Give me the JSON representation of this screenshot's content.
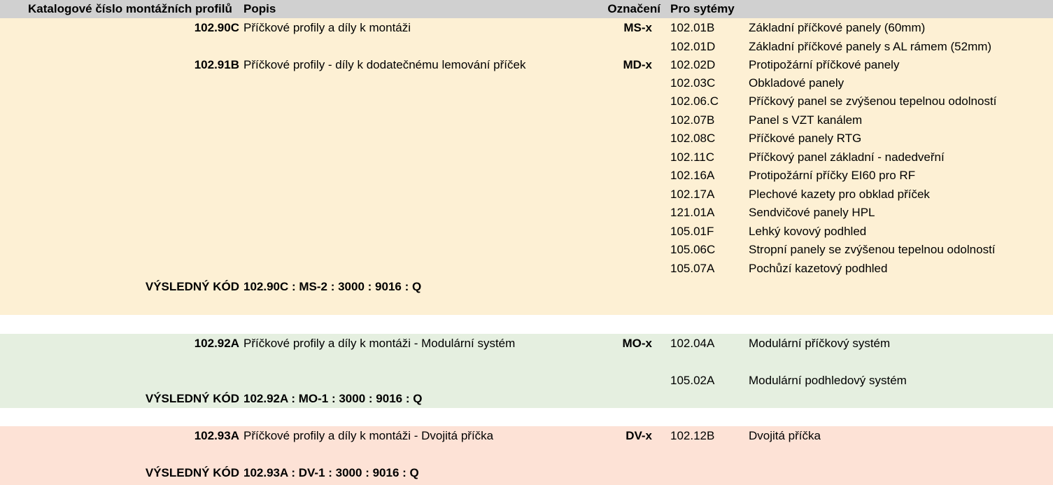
{
  "header": {
    "col_catalog": "Katalogové číslo montážních profilů",
    "col_desc": "Popis",
    "col_mark": "Označení",
    "col_systems": "Pro sytémy"
  },
  "groups": [
    {
      "color": "#fdf0d4",
      "items": [
        {
          "code": "102.90C",
          "desc": "Příčkové profily a díly k montáži",
          "mark": "MS-x"
        },
        {
          "code": "102.91B",
          "desc": "Příčkové profily - díly k dodatečnému lemování příček",
          "mark": "MD-x"
        }
      ],
      "systems": [
        {
          "code": "102.01B",
          "desc": "Základní příčkové panely (60mm)"
        },
        {
          "code": "102.01D",
          "desc": "Základní příčkové panely s AL rámem (52mm)"
        },
        {
          "code": "102.02D",
          "desc": "Protipožární příčkové panely"
        },
        {
          "code": "102.03C",
          "desc": "Obkladové panely"
        },
        {
          "code": "102.06.C",
          "desc": "Příčkový panel se zvýšenou tepelnou odolností"
        },
        {
          "code": "102.07B",
          "desc": "Panel s VZT kanálem"
        },
        {
          "code": "102.08C",
          "desc": "Příčkové panely RTG"
        },
        {
          "code": "102.11C",
          "desc": "Příčkový panel základní - nadedveřní"
        },
        {
          "code": "102.16A",
          "desc": "Protipožární příčky EI60 pro RF"
        },
        {
          "code": "102.17A",
          "desc": "Plechové kazety pro obklad příček"
        },
        {
          "code": "121.01A",
          "desc": "Sendvičové panely HPL"
        },
        {
          "code": "105.01F",
          "desc": "Lehký kovový podhled"
        },
        {
          "code": "105.06C",
          "desc": "Stropní panely se zvýšenou tepelnou odolností"
        },
        {
          "code": "105.07A",
          "desc": "Pochůzí kazetový podhled"
        }
      ],
      "result_label": "VÝSLEDNÝ KÓD",
      "result_code": "102.90C : MS-2 : 3000 : 9016 : Q"
    },
    {
      "color": "#e5efe0",
      "items": [
        {
          "code": "102.92A",
          "desc": "Příčkové profily a díly k montáži - Modulární systém",
          "mark": "MO-x"
        }
      ],
      "systems": [
        {
          "code": "102.04A",
          "desc": "Modulární příčkový systém"
        },
        {
          "code": "105.02A",
          "desc": "Modulární podhledový systém"
        }
      ],
      "result_label": "VÝSLEDNÝ KÓD",
      "result_code": "102.92A : MO-1 : 3000 : 9016 : Q"
    },
    {
      "color": "#fde2d6",
      "items": [
        {
          "code": "102.93A",
          "desc": "Příčkové profily a díly k montáži - Dvojitá příčka",
          "mark": "DV-x"
        }
      ],
      "systems": [
        {
          "code": "102.12B",
          "desc": "Dvojitá příčka"
        }
      ],
      "result_label": "VÝSLEDNÝ KÓD",
      "result_code": "102.93A : DV-1 : 3000 : 9016 : Q"
    }
  ]
}
